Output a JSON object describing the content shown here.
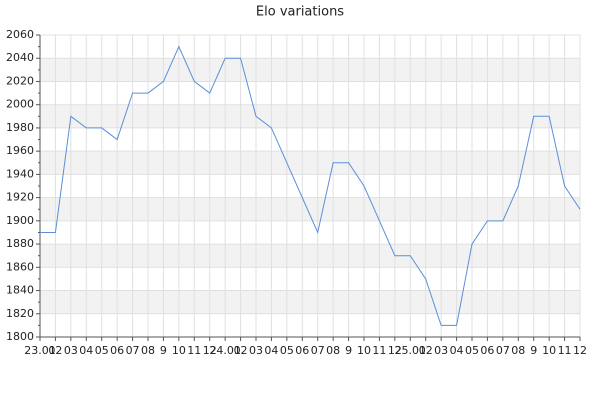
{
  "chart_data": {
    "type": "line",
    "title": "Elo variations",
    "categories": [
      "23.01",
      "02",
      "03",
      "04",
      "05",
      "06",
      "07",
      "08",
      "9",
      "10",
      "11",
      "12",
      "24.01",
      "02",
      "03",
      "04",
      "05",
      "06",
      "07",
      "08",
      "9",
      "10",
      "11",
      "12",
      "25.01",
      "02",
      "03",
      "04",
      "05",
      "06",
      "07",
      "08",
      "9",
      "10",
      "11",
      "12"
    ],
    "values": [
      1890,
      1890,
      1990,
      1980,
      1980,
      1970,
      2010,
      2010,
      2020,
      2050,
      2020,
      2010,
      2040,
      2040,
      1990,
      1980,
      1950,
      1920,
      1890,
      1950,
      1950,
      1930,
      1900,
      1870,
      1870,
      1850,
      1810,
      1810,
      1880,
      1900,
      1900,
      1930,
      1990,
      1990,
      1930,
      1910
    ],
    "color": "#5b8fd9",
    "ylim": [
      1800,
      2060
    ],
    "yticks": [
      1800,
      1820,
      1840,
      1860,
      1880,
      1900,
      1920,
      1940,
      1960,
      1980,
      2000,
      2020,
      2040,
      2060
    ],
    "grid": true
  }
}
